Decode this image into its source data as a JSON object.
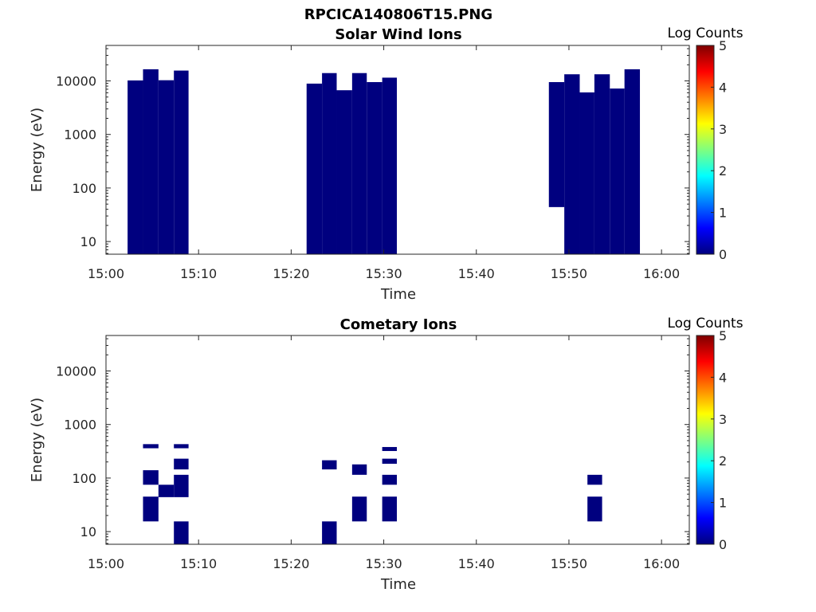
{
  "figure_title": "RPCICA140806T15.PNG",
  "colors": {
    "marks": "#00007F",
    "colormap": [
      "#00007F",
      "#0000FF",
      "#007FFF",
      "#00FFFF",
      "#7FFF7F",
      "#FFFF00",
      "#FF7F00",
      "#FF0000",
      "#7F0000"
    ]
  },
  "chart_data": [
    {
      "type": "heatmap",
      "title": "Solar Wind Ions",
      "xlabel": "Time",
      "ylabel": "Energy (eV)",
      "x_scale": "time",
      "y_scale": "log",
      "xlim": [
        "15:00",
        "16:03"
      ],
      "ylim": [
        5.8,
        46000
      ],
      "x_ticks": [
        "15:00",
        "15:10",
        "15:20",
        "15:30",
        "15:40",
        "15:50",
        "16:00"
      ],
      "y_ticks": [
        10,
        100,
        1000,
        10000
      ],
      "y_tick_labels": [
        "10",
        "100",
        "1000",
        "10000"
      ],
      "colorbar": {
        "label": "Log Counts",
        "ticks": [
          "0",
          "1",
          "2",
          "3",
          "4",
          "5"
        ],
        "range": [
          0,
          5
        ]
      },
      "cells": [
        {
          "t0": "15:02:20",
          "t1": "15:04:00",
          "e0": 5.8,
          "e1": 10200,
          "log_counts": 0
        },
        {
          "t0": "15:04:00",
          "t1": "15:05:40",
          "e0": 5.8,
          "e1": 16500,
          "log_counts": 0
        },
        {
          "t0": "15:05:40",
          "t1": "15:07:20",
          "e0": 5.8,
          "e1": 10300,
          "log_counts": 0
        },
        {
          "t0": "15:07:20",
          "t1": "15:08:55",
          "e0": 5.8,
          "e1": 15600,
          "log_counts": 0
        },
        {
          "t0": "15:21:40",
          "t1": "15:23:20",
          "e0": 5.8,
          "e1": 8900,
          "log_counts": 0
        },
        {
          "t0": "15:23:20",
          "t1": "15:24:55",
          "e0": 5.8,
          "e1": 14000,
          "log_counts": 0
        },
        {
          "t0": "15:24:55",
          "t1": "15:26:35",
          "e0": 5.8,
          "e1": 6700,
          "log_counts": 0
        },
        {
          "t0": "15:26:35",
          "t1": "15:28:10",
          "e0": 5.8,
          "e1": 14000,
          "log_counts": 0
        },
        {
          "t0": "15:28:10",
          "t1": "15:29:50",
          "e0": 5.8,
          "e1": 9500,
          "log_counts": 0
        },
        {
          "t0": "15:29:50",
          "t1": "15:31:25",
          "e0": 5.8,
          "e1": 11500,
          "log_counts": 0
        },
        {
          "t0": "15:47:50",
          "t1": "15:49:30",
          "e0": 44,
          "e1": 9500,
          "log_counts": 0
        },
        {
          "t0": "15:49:30",
          "t1": "15:51:10",
          "e0": 5.8,
          "e1": 13300,
          "log_counts": 0
        },
        {
          "t0": "15:51:10",
          "t1": "15:52:45",
          "e0": 5.8,
          "e1": 6100,
          "log_counts": 0
        },
        {
          "t0": "15:52:45",
          "t1": "15:54:25",
          "e0": 5.8,
          "e1": 13300,
          "log_counts": 0
        },
        {
          "t0": "15:54:25",
          "t1": "15:56:00",
          "e0": 5.8,
          "e1": 7200,
          "log_counts": 0
        },
        {
          "t0": "15:56:00",
          "t1": "15:57:40",
          "e0": 5.8,
          "e1": 16500,
          "log_counts": 0
        }
      ]
    },
    {
      "type": "heatmap",
      "title": "Cometary Ions",
      "xlabel": "Time",
      "ylabel": "Energy (eV)",
      "x_scale": "time",
      "y_scale": "log",
      "xlim": [
        "15:00",
        "16:03"
      ],
      "ylim": [
        5.8,
        46000
      ],
      "x_ticks": [
        "15:00",
        "15:10",
        "15:20",
        "15:30",
        "15:40",
        "15:50",
        "16:00"
      ],
      "y_ticks": [
        10,
        100,
        1000,
        10000
      ],
      "y_tick_labels": [
        "10",
        "100",
        "1000",
        "10000"
      ],
      "colorbar": {
        "label": "Log Counts",
        "ticks": [
          "0",
          "1",
          "2",
          "3",
          "4",
          "5"
        ],
        "range": [
          0,
          5
        ]
      },
      "cells": [
        {
          "t0": "15:04:00",
          "t1": "15:05:40",
          "e0": 360,
          "e1": 430,
          "log_counts": 0
        },
        {
          "t0": "15:04:00",
          "t1": "15:05:40",
          "e0": 75,
          "e1": 140,
          "log_counts": 0
        },
        {
          "t0": "15:04:00",
          "t1": "15:05:40",
          "e0": 15.5,
          "e1": 45,
          "log_counts": 0
        },
        {
          "t0": "15:05:40",
          "t1": "15:07:20",
          "e0": 44,
          "e1": 75,
          "log_counts": 0
        },
        {
          "t0": "15:07:20",
          "t1": "15:08:55",
          "e0": 360,
          "e1": 430,
          "log_counts": 0
        },
        {
          "t0": "15:07:20",
          "t1": "15:08:55",
          "e0": 145,
          "e1": 230,
          "log_counts": 0
        },
        {
          "t0": "15:07:20",
          "t1": "15:08:55",
          "e0": 44,
          "e1": 115,
          "log_counts": 0
        },
        {
          "t0": "15:07:20",
          "t1": "15:08:55",
          "e0": 5.8,
          "e1": 15.5,
          "log_counts": 0
        },
        {
          "t0": "15:23:20",
          "t1": "15:24:55",
          "e0": 145,
          "e1": 215,
          "log_counts": 0
        },
        {
          "t0": "15:23:20",
          "t1": "15:24:55",
          "e0": 5.8,
          "e1": 15.5,
          "log_counts": 0
        },
        {
          "t0": "15:26:35",
          "t1": "15:28:10",
          "e0": 115,
          "e1": 180,
          "log_counts": 0
        },
        {
          "t0": "15:26:35",
          "t1": "15:28:10",
          "e0": 15.5,
          "e1": 45,
          "log_counts": 0
        },
        {
          "t0": "15:29:50",
          "t1": "15:31:25",
          "e0": 320,
          "e1": 380,
          "log_counts": 0
        },
        {
          "t0": "15:29:50",
          "t1": "15:31:25",
          "e0": 185,
          "e1": 230,
          "log_counts": 0
        },
        {
          "t0": "15:29:50",
          "t1": "15:31:25",
          "e0": 75,
          "e1": 115,
          "log_counts": 0
        },
        {
          "t0": "15:29:50",
          "t1": "15:31:25",
          "e0": 15.5,
          "e1": 45,
          "log_counts": 0
        },
        {
          "t0": "15:52:00",
          "t1": "15:53:35",
          "e0": 75,
          "e1": 115,
          "log_counts": 0
        },
        {
          "t0": "15:52:00",
          "t1": "15:53:35",
          "e0": 15.5,
          "e1": 45,
          "log_counts": 0
        }
      ]
    }
  ]
}
